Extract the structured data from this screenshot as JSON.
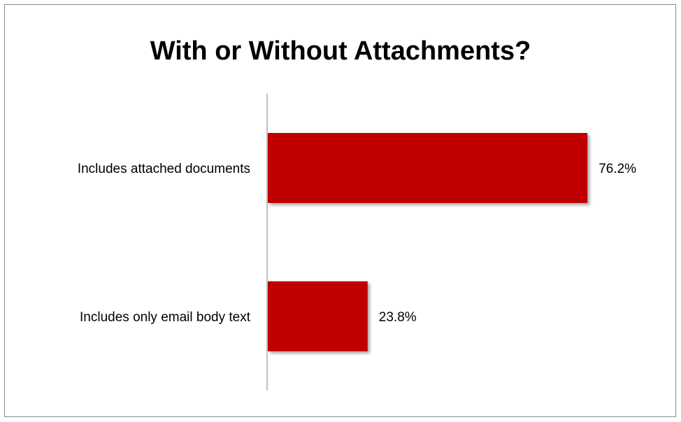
{
  "chart_data": {
    "type": "bar",
    "orientation": "horizontal",
    "title": "With or Without Attachments?",
    "categories": [
      "Includes attached documents",
      "Includes only email body text"
    ],
    "values": [
      76.2,
      23.8
    ],
    "value_labels": [
      "76.2%",
      "23.8%"
    ],
    "xlim": [
      0,
      100
    ],
    "bar_color": "#C00000",
    "grid": false,
    "legend": "none"
  }
}
